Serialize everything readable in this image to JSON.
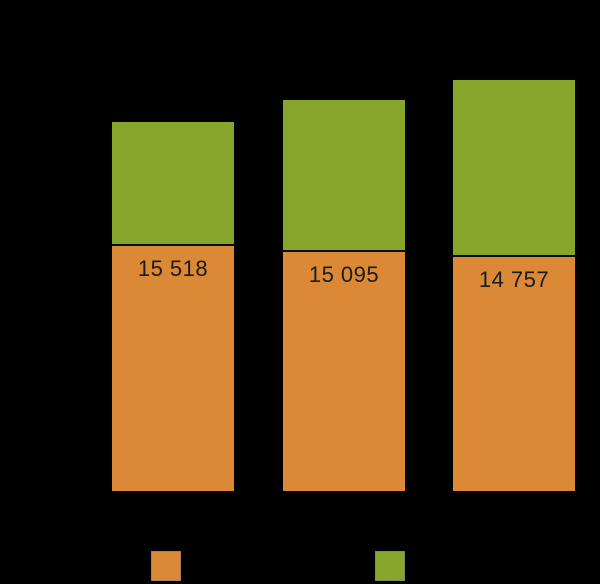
{
  "chart": {
    "background_color": "#000000",
    "bars": [
      {
        "label": "15 518"
      },
      {
        "label": "15 095"
      },
      {
        "label": "14 757"
      }
    ],
    "colors": {
      "orange_segment": "#DB8936",
      "green_segment": "#85A52B",
      "segment_separator": "#0a0a0a",
      "label_text": "#1b1b1b"
    }
  },
  "legend": {
    "items": [
      {
        "name": "orange-series",
        "color": "#DB8936"
      },
      {
        "name": "green-series",
        "color": "#85A52B"
      }
    ]
  },
  "chart_data": {
    "type": "bar",
    "stacked": true,
    "categories": [
      "",
      "",
      ""
    ],
    "series": [
      {
        "name": "bottom-segment-orange",
        "color": "#DB8936",
        "values": [
          15518,
          15095,
          14757
        ],
        "data_labels": [
          "15 518",
          "15 095",
          "14 757"
        ]
      },
      {
        "name": "top-segment-green",
        "color": "#85A52B",
        "values_estimated": [
          7720,
          9500,
          11100
        ],
        "data_labels": []
      }
    ],
    "title": "",
    "xlabel": "",
    "ylabel": "",
    "grid": false,
    "legend_position": "bottom",
    "axis_visible": false
  }
}
